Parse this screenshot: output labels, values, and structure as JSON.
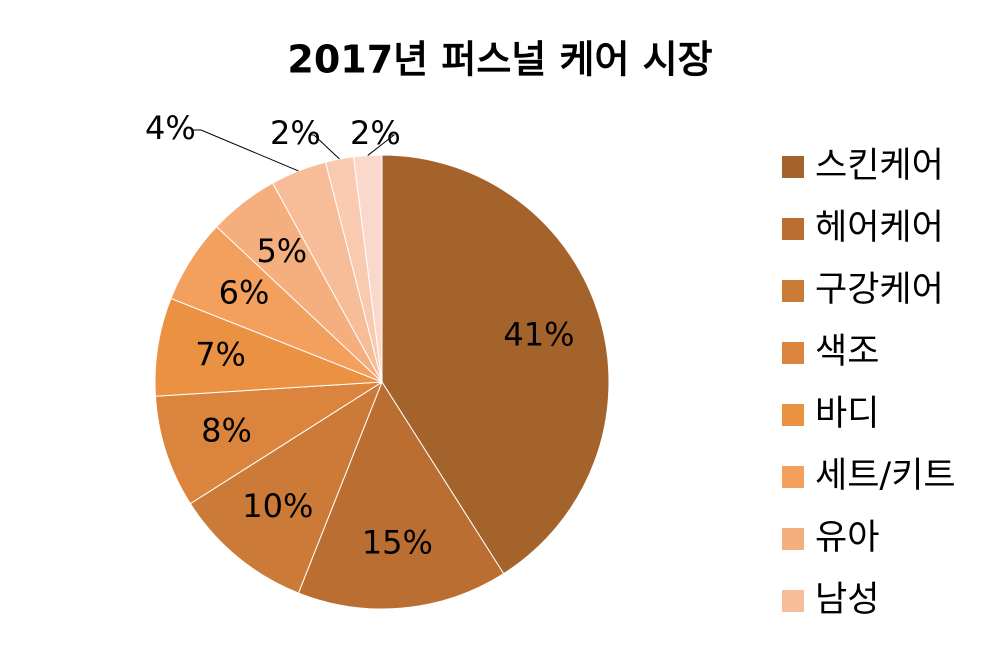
{
  "chart_data": {
    "type": "pie",
    "title": "2017년 퍼스널 케어 시장",
    "categories": [
      "스킨케어",
      "헤어케어",
      "구강케어",
      "색조",
      "바디",
      "세트/키트",
      "유아",
      "남성",
      null,
      null
    ],
    "values": [
      41,
      15,
      10,
      8,
      7,
      6,
      5,
      4,
      2,
      2
    ],
    "value_labels": [
      "41%",
      "15%",
      "10%",
      "8%",
      "7%",
      "6%",
      "5%",
      "4%",
      "2%",
      "2%"
    ],
    "colors": [
      "#a5632c",
      "#bb6e32",
      "#cc7a38",
      "#db843d",
      "#eb9142",
      "#f3a05f",
      "#f5af7f",
      "#f7bd99",
      "#f9cab0",
      "#fad8cb"
    ],
    "legend": "right"
  }
}
